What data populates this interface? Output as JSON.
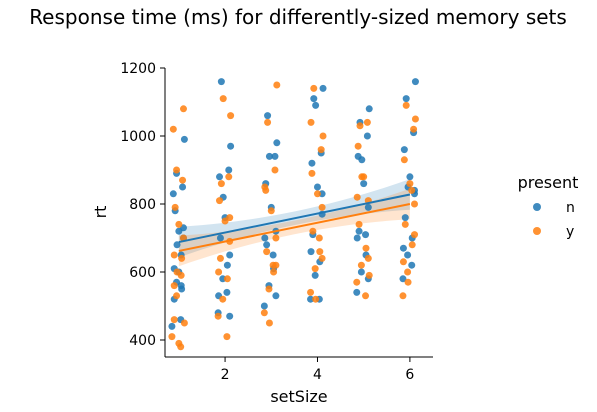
{
  "chart_data": {
    "type": "scatter",
    "title": "Response time (ms) for differently-sized memory sets",
    "xlabel": "setSize",
    "ylabel": "rt",
    "xlim": [
      0.7,
      6.5
    ],
    "ylim": [
      350,
      1200
    ],
    "xticks": [
      "2",
      "4",
      "6"
    ],
    "yticks": [
      "400",
      "600",
      "800",
      "1000",
      "1200"
    ],
    "grid": false,
    "legend": {
      "title": "present",
      "placement": "right"
    },
    "series": [
      {
        "name": "n",
        "color": "#1f77b4",
        "points": [
          [
            0.85,
            440
          ],
          [
            0.9,
            520
          ],
          [
            0.95,
            570
          ],
          [
            1.05,
            560
          ],
          [
            0.9,
            610
          ],
          [
            1.1,
            700
          ],
          [
            1.0,
            720
          ],
          [
            0.92,
            780
          ],
          [
            1.08,
            850
          ],
          [
            0.95,
            890
          ],
          [
            1.1,
            730
          ],
          [
            1.05,
            650
          ],
          [
            0.88,
            830
          ],
          [
            1.12,
            990
          ],
          [
            1.0,
            600
          ],
          [
            1.04,
            460
          ],
          [
            0.96,
            680
          ],
          [
            1.06,
            550
          ],
          [
            1.85,
            480
          ],
          [
            1.95,
            580
          ],
          [
            2.05,
            620
          ],
          [
            1.9,
            700
          ],
          [
            2.1,
            650
          ],
          [
            2.0,
            760
          ],
          [
            1.88,
            880
          ],
          [
            2.08,
            900
          ],
          [
            1.92,
            1160
          ],
          [
            2.12,
            970
          ],
          [
            2.04,
            540
          ],
          [
            1.96,
            820
          ],
          [
            2.1,
            470
          ],
          [
            1.86,
            530
          ],
          [
            2.85,
            500
          ],
          [
            2.95,
            560
          ],
          [
            3.05,
            610
          ],
          [
            2.9,
            680
          ],
          [
            3.1,
            720
          ],
          [
            3.0,
            790
          ],
          [
            2.88,
            860
          ],
          [
            3.08,
            940
          ],
          [
            2.92,
            1060
          ],
          [
            3.12,
            980
          ],
          [
            3.04,
            650
          ],
          [
            2.96,
            940
          ],
          [
            3.1,
            530
          ],
          [
            2.86,
            700
          ],
          [
            3.85,
            520
          ],
          [
            3.95,
            590
          ],
          [
            4.05,
            630
          ],
          [
            3.9,
            710
          ],
          [
            4.1,
            770
          ],
          [
            4.0,
            850
          ],
          [
            3.88,
            920
          ],
          [
            4.08,
            950
          ],
          [
            3.92,
            1110
          ],
          [
            4.12,
            1140
          ],
          [
            4.04,
            520
          ],
          [
            3.96,
            1090
          ],
          [
            4.1,
            830
          ],
          [
            3.86,
            660
          ],
          [
            4.85,
            540
          ],
          [
            4.95,
            600
          ],
          [
            5.05,
            650
          ],
          [
            4.9,
            720
          ],
          [
            5.1,
            790
          ],
          [
            5.0,
            860
          ],
          [
            4.88,
            940
          ],
          [
            5.08,
            1000
          ],
          [
            4.92,
            1040
          ],
          [
            5.12,
            1080
          ],
          [
            5.04,
            710
          ],
          [
            4.96,
            930
          ],
          [
            5.1,
            580
          ],
          [
            4.86,
            700
          ],
          [
            5.85,
            580
          ],
          [
            5.95,
            650
          ],
          [
            6.05,
            700
          ],
          [
            5.9,
            760
          ],
          [
            6.1,
            830
          ],
          [
            6.0,
            880
          ],
          [
            5.88,
            960
          ],
          [
            6.08,
            1010
          ],
          [
            5.92,
            1110
          ],
          [
            6.12,
            1160
          ],
          [
            6.04,
            620
          ],
          [
            5.96,
            850
          ],
          [
            6.1,
            840
          ],
          [
            5.86,
            670
          ]
        ],
        "regression": {
          "x": [
            1,
            6
          ],
          "y": [
            688,
            828
          ]
        }
      },
      {
        "name": "y",
        "color": "#ff7f0e",
        "points": [
          [
            0.85,
            410
          ],
          [
            0.9,
            460
          ],
          [
            0.95,
            530
          ],
          [
            1.05,
            590
          ],
          [
            0.9,
            650
          ],
          [
            1.1,
            700
          ],
          [
            1.0,
            740
          ],
          [
            0.92,
            790
          ],
          [
            1.08,
            870
          ],
          [
            0.95,
            900
          ],
          [
            1.1,
            1080
          ],
          [
            0.88,
            1020
          ],
          [
            1.04,
            380
          ],
          [
            1.12,
            450
          ],
          [
            0.96,
            600
          ],
          [
            1.06,
            640
          ],
          [
            0.9,
            560
          ],
          [
            1.0,
            390
          ],
          [
            1.85,
            470
          ],
          [
            1.95,
            520
          ],
          [
            2.05,
            580
          ],
          [
            1.9,
            640
          ],
          [
            2.1,
            690
          ],
          [
            2.0,
            750
          ],
          [
            1.88,
            810
          ],
          [
            2.08,
            880
          ],
          [
            1.92,
            860
          ],
          [
            2.12,
            1060
          ],
          [
            1.96,
            1110
          ],
          [
            2.04,
            410
          ],
          [
            2.1,
            760
          ],
          [
            1.86,
            600
          ],
          [
            2.85,
            480
          ],
          [
            2.95,
            550
          ],
          [
            3.05,
            600
          ],
          [
            2.9,
            660
          ],
          [
            3.1,
            700
          ],
          [
            3.0,
            780
          ],
          [
            2.88,
            840
          ],
          [
            3.08,
            900
          ],
          [
            2.92,
            1040
          ],
          [
            3.12,
            1150
          ],
          [
            3.04,
            620
          ],
          [
            2.96,
            450
          ],
          [
            3.1,
            620
          ],
          [
            2.86,
            850
          ],
          [
            3.85,
            540
          ],
          [
            3.95,
            610
          ],
          [
            4.05,
            660
          ],
          [
            3.9,
            720
          ],
          [
            4.1,
            790
          ],
          [
            4.0,
            830
          ],
          [
            3.88,
            890
          ],
          [
            4.08,
            960
          ],
          [
            3.92,
            1140
          ],
          [
            4.12,
            1000
          ],
          [
            4.04,
            700
          ],
          [
            3.96,
            520
          ],
          [
            4.1,
            640
          ],
          [
            3.86,
            1040
          ],
          [
            4.85,
            570
          ],
          [
            4.95,
            620
          ],
          [
            5.05,
            670
          ],
          [
            4.9,
            740
          ],
          [
            5.1,
            810
          ],
          [
            5.0,
            880
          ],
          [
            4.88,
            970
          ],
          [
            5.08,
            1040
          ],
          [
            4.92,
            1030
          ],
          [
            5.12,
            590
          ],
          [
            5.04,
            530
          ],
          [
            4.96,
            880
          ],
          [
            5.1,
            640
          ],
          [
            4.86,
            820
          ],
          [
            5.85,
            530
          ],
          [
            5.95,
            600
          ],
          [
            6.05,
            680
          ],
          [
            5.9,
            740
          ],
          [
            6.1,
            800
          ],
          [
            6.0,
            860
          ],
          [
            5.88,
            930
          ],
          [
            6.08,
            1020
          ],
          [
            5.92,
            1090
          ],
          [
            6.12,
            1050
          ],
          [
            6.04,
            840
          ],
          [
            5.96,
            570
          ],
          [
            6.1,
            710
          ],
          [
            5.86,
            630
          ]
        ],
        "regression": {
          "x": [
            1,
            6
          ],
          "y": [
            662,
            800
          ]
        }
      }
    ]
  }
}
